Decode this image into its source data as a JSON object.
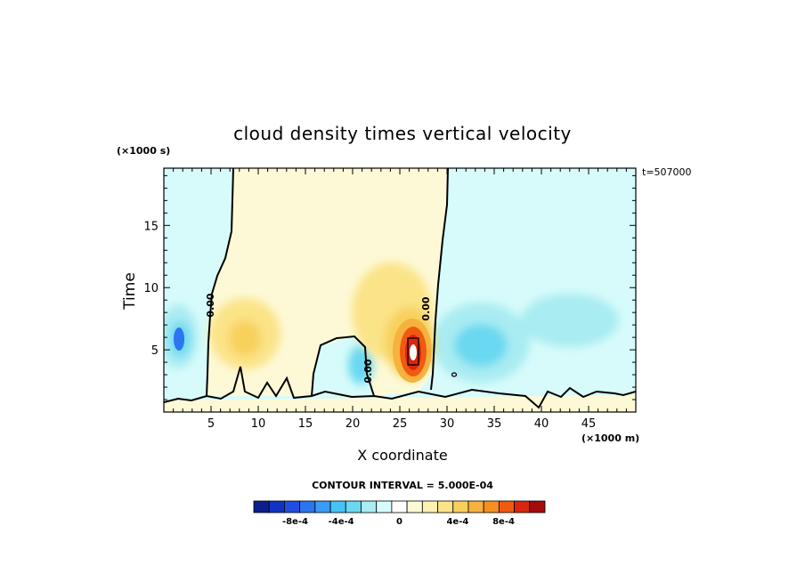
{
  "chart_data": {
    "type": "heatmap",
    "title": "cloud density times vertical velocity",
    "xlabel": "X coordinate",
    "ylabel": "Time",
    "x_unit": "(×1000 m)",
    "y_unit": "(×1000 s)",
    "timestamp": "t=507000",
    "xlim": [
      0,
      50
    ],
    "ylim": [
      0,
      19.6
    ],
    "x_ticks": [
      5,
      10,
      15,
      20,
      25,
      30,
      35,
      40,
      45
    ],
    "y_ticks": [
      5,
      10,
      15
    ],
    "contour_interval": "CONTOUR INTERVAL = 5.000E-04",
    "contour_label": "0.00",
    "colorbar": {
      "labels": [
        "-8e-4",
        "-4e-4",
        "0",
        "4e-4",
        "8e-4"
      ],
      "colors": [
        "#0b1f8f",
        "#1133c5",
        "#1f4fe0",
        "#2b75f0",
        "#3a9cf5",
        "#46c2f5",
        "#6ad8f0",
        "#a9ecf2",
        "#d7fbfb",
        "#ffffff",
        "#fdf9d6",
        "#fdf1b0",
        "#fbe387",
        "#f8d05c",
        "#f6b23e",
        "#f5901f",
        "#f05a10",
        "#d9260c",
        "#a50c0c"
      ]
    },
    "features": [
      {
        "x": 26.5,
        "y": 5.0,
        "value": "max positive core (~9e-4)"
      },
      {
        "x": 1.5,
        "y": 6.0,
        "value": "negative (~-3.5e-4)"
      },
      {
        "x": 35.0,
        "y": 5.0,
        "value": "negative (~-1.5e-4)"
      },
      {
        "x": 10.0,
        "y": 5.5,
        "value": "positive (~3e-4)"
      }
    ]
  }
}
